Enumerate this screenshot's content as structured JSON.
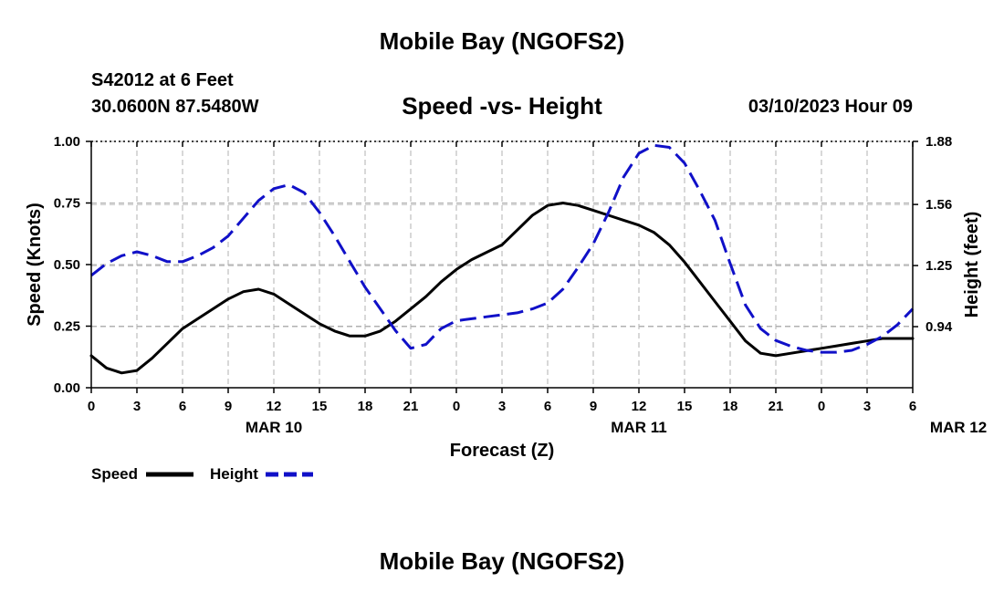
{
  "header": {
    "title": "Mobile Bay (NGOFS2)",
    "station": "S42012 at 6 Feet",
    "coords": "30.0600N  87.5480W",
    "subtitle": "Speed -vs- Height",
    "timestamp": "03/10/2023 Hour 09"
  },
  "footer": {
    "title": "Mobile Bay (NGOFS2)"
  },
  "chart_data": {
    "type": "line",
    "title": "Speed -vs- Height",
    "xlabel": "Forecast (Z)",
    "ylabel_left": "Speed (Knots)",
    "ylabel_right": "Height (feet)",
    "x_tick_labels": [
      "0",
      "3",
      "6",
      "9",
      "12",
      "15",
      "18",
      "21",
      "0",
      "3",
      "6",
      "9",
      "12",
      "15",
      "18",
      "21",
      "0",
      "3",
      "6"
    ],
    "x_day_labels": [
      {
        "label": "MAR 10",
        "hour": 12
      },
      {
        "label": "MAR 11",
        "hour": 36
      },
      {
        "label": "MAR 12",
        "hour": 57
      }
    ],
    "xlim": [
      0,
      54
    ],
    "ylim_left": [
      0,
      1.0
    ],
    "yticks_left": [
      "0.00",
      "0.25",
      "0.50",
      "0.75",
      "1.00"
    ],
    "ylim_right": [
      0.63,
      1.88
    ],
    "yticks_right": [
      {
        "value": 0.94,
        "label": "0.94"
      },
      {
        "value": 1.25,
        "label": "1.25"
      },
      {
        "value": 1.56,
        "label": "1.56"
      },
      {
        "value": 1.88,
        "label": "1.88"
      }
    ],
    "grid": true,
    "legend_position": "bottom-left",
    "series": [
      {
        "name": "Speed",
        "axis": "left",
        "color": "#000000",
        "dash": "solid",
        "points": [
          [
            0,
            0.13
          ],
          [
            1,
            0.08
          ],
          [
            2,
            0.06
          ],
          [
            3,
            0.07
          ],
          [
            4,
            0.12
          ],
          [
            5,
            0.18
          ],
          [
            6,
            0.24
          ],
          [
            7,
            0.28
          ],
          [
            8,
            0.32
          ],
          [
            9,
            0.36
          ],
          [
            10,
            0.39
          ],
          [
            11,
            0.4
          ],
          [
            12,
            0.38
          ],
          [
            13,
            0.34
          ],
          [
            14,
            0.3
          ],
          [
            15,
            0.26
          ],
          [
            16,
            0.23
          ],
          [
            17,
            0.21
          ],
          [
            18,
            0.21
          ],
          [
            19,
            0.23
          ],
          [
            20,
            0.27
          ],
          [
            21,
            0.32
          ],
          [
            22,
            0.37
          ],
          [
            23,
            0.43
          ],
          [
            24,
            0.48
          ],
          [
            25,
            0.52
          ],
          [
            26,
            0.55
          ],
          [
            27,
            0.58
          ],
          [
            28,
            0.64
          ],
          [
            29,
            0.7
          ],
          [
            30,
            0.74
          ],
          [
            31,
            0.75
          ],
          [
            32,
            0.74
          ],
          [
            33,
            0.72
          ],
          [
            34,
            0.7
          ],
          [
            35,
            0.68
          ],
          [
            36,
            0.66
          ],
          [
            37,
            0.63
          ],
          [
            38,
            0.58
          ],
          [
            39,
            0.51
          ],
          [
            40,
            0.43
          ],
          [
            41,
            0.35
          ],
          [
            42,
            0.27
          ],
          [
            43,
            0.19
          ],
          [
            44,
            0.14
          ],
          [
            45,
            0.13
          ],
          [
            46,
            0.14
          ],
          [
            47,
            0.15
          ],
          [
            48,
            0.16
          ],
          [
            49,
            0.17
          ],
          [
            50,
            0.18
          ],
          [
            51,
            0.19
          ],
          [
            52,
            0.2
          ],
          [
            53,
            0.2
          ],
          [
            54,
            0.2
          ]
        ]
      },
      {
        "name": "Height",
        "axis": "right",
        "color": "#1010c8",
        "dash": "dashed",
        "points": [
          [
            0,
            1.2
          ],
          [
            1,
            1.26
          ],
          [
            2,
            1.3
          ],
          [
            3,
            1.32
          ],
          [
            4,
            1.3
          ],
          [
            5,
            1.27
          ],
          [
            6,
            1.27
          ],
          [
            7,
            1.3
          ],
          [
            8,
            1.34
          ],
          [
            9,
            1.4
          ],
          [
            10,
            1.49
          ],
          [
            11,
            1.58
          ],
          [
            12,
            1.64
          ],
          [
            13,
            1.66
          ],
          [
            14,
            1.62
          ],
          [
            15,
            1.52
          ],
          [
            16,
            1.4
          ],
          [
            17,
            1.27
          ],
          [
            18,
            1.14
          ],
          [
            19,
            1.03
          ],
          [
            20,
            0.92
          ],
          [
            21,
            0.83
          ],
          [
            22,
            0.85
          ],
          [
            23,
            0.93
          ],
          [
            24,
            0.97
          ],
          [
            25,
            0.98
          ],
          [
            26,
            0.99
          ],
          [
            27,
            1.0
          ],
          [
            28,
            1.01
          ],
          [
            29,
            1.03
          ],
          [
            30,
            1.06
          ],
          [
            31,
            1.13
          ],
          [
            32,
            1.24
          ],
          [
            33,
            1.36
          ],
          [
            34,
            1.52
          ],
          [
            35,
            1.7
          ],
          [
            36,
            1.82
          ],
          [
            37,
            1.86
          ],
          [
            38,
            1.85
          ],
          [
            39,
            1.77
          ],
          [
            40,
            1.63
          ],
          [
            41,
            1.48
          ],
          [
            42,
            1.26
          ],
          [
            43,
            1.05
          ],
          [
            44,
            0.93
          ],
          [
            45,
            0.87
          ],
          [
            46,
            0.84
          ],
          [
            47,
            0.82
          ],
          [
            48,
            0.81
          ],
          [
            49,
            0.81
          ],
          [
            50,
            0.82
          ],
          [
            51,
            0.85
          ],
          [
            52,
            0.89
          ],
          [
            53,
            0.95
          ],
          [
            54,
            1.03
          ]
        ]
      }
    ]
  }
}
